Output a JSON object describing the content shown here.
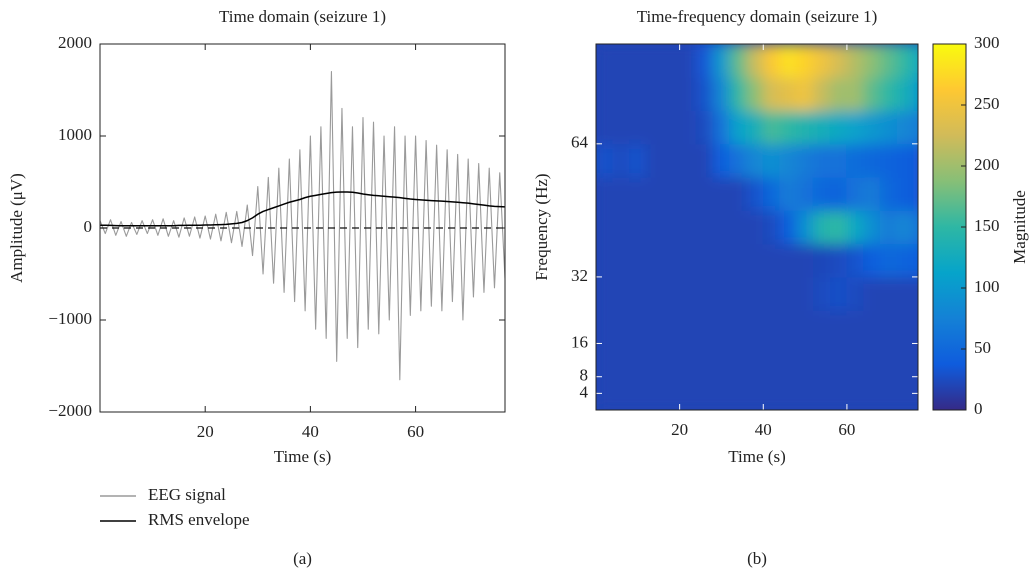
{
  "chart_data": [
    {
      "type": "line",
      "title": "Time domain (seizure 1)",
      "x_label": "Time (s)",
      "y_label": "Amplitude (μV)",
      "x": [
        0,
        1,
        2,
        3,
        4,
        5,
        6,
        7,
        8,
        9,
        10,
        11,
        12,
        13,
        14,
        15,
        16,
        17,
        18,
        19,
        20,
        21,
        22,
        23,
        24,
        25,
        26,
        27,
        28,
        29,
        30,
        31,
        32,
        33,
        34,
        35,
        36,
        37,
        38,
        39,
        40,
        41,
        42,
        43,
        44,
        45,
        46,
        47,
        48,
        49,
        50,
        51,
        52,
        53,
        54,
        55,
        56,
        57,
        58,
        59,
        60,
        61,
        62,
        63,
        64,
        65,
        66,
        67,
        68,
        69,
        70,
        71,
        72,
        73,
        74,
        75,
        76,
        77
      ],
      "series": [
        {
          "name": "EEG signal",
          "color": "#9a9a9a",
          "values": [
            80,
            -60,
            90,
            -80,
            70,
            -90,
            60,
            -70,
            80,
            -60,
            90,
            -80,
            100,
            -90,
            80,
            -100,
            110,
            -90,
            120,
            -110,
            130,
            -120,
            150,
            -140,
            170,
            -160,
            180,
            -200,
            250,
            -300,
            450,
            -500,
            550,
            -600,
            650,
            -700,
            750,
            -800,
            850,
            -900,
            1000,
            -1100,
            1100,
            -1200,
            1700,
            -1450,
            1300,
            -1200,
            1100,
            -1300,
            1200,
            -1100,
            1150,
            -1150,
            1000,
            -1000,
            1100,
            -1650,
            1000,
            -950,
            1000,
            -900,
            950,
            -850,
            900,
            -900,
            850,
            -800,
            800,
            -1000,
            750,
            -750,
            700,
            -700,
            650,
            -650,
            600,
            -550
          ]
        },
        {
          "name": "RMS envelope",
          "color": "#000000",
          "values": [
            30,
            30,
            28,
            26,
            25,
            25,
            25,
            25,
            25,
            25,
            25,
            25,
            25,
            25,
            25,
            28,
            28,
            30,
            30,
            30,
            32,
            33,
            35,
            37,
            40,
            45,
            50,
            60,
            80,
            110,
            150,
            180,
            200,
            220,
            240,
            260,
            280,
            295,
            310,
            330,
            345,
            355,
            365,
            375,
            385,
            390,
            392,
            392,
            388,
            380,
            370,
            362,
            355,
            350,
            345,
            340,
            335,
            330,
            322,
            315,
            310,
            306,
            302,
            298,
            295,
            292,
            288,
            284,
            280,
            275,
            270,
            262,
            255,
            248,
            240,
            235,
            232,
            230
          ]
        }
      ],
      "hline": 0,
      "xlim": [
        0,
        77
      ],
      "xticks": [
        20,
        40,
        60
      ],
      "ylim": [
        -2000,
        2000
      ],
      "yticks": [
        {
          "value": -2000,
          "label": "−2000"
        },
        {
          "value": -1000,
          "label": "−1000"
        },
        0,
        1000,
        2000
      ],
      "legend": "below",
      "caption": "(a)"
    },
    {
      "type": "heatmap",
      "title": "Time-frequency domain (seizure 1)",
      "x_label": "Time (s)",
      "y_label": "Frequency (Hz)",
      "x": [
        2,
        6,
        10,
        14,
        18,
        22,
        26,
        30,
        34,
        38,
        42,
        46,
        50,
        54,
        58,
        62,
        66,
        70,
        74,
        78
      ],
      "y": [
        4,
        12,
        20,
        28,
        36,
        44,
        52,
        60,
        68,
        76,
        84
      ],
      "z": [
        [
          20,
          20,
          20,
          20,
          20,
          20,
          20,
          20,
          20,
          20,
          20,
          20,
          20,
          20,
          20,
          20,
          20,
          20,
          20,
          20
        ],
        [
          20,
          20,
          20,
          20,
          20,
          20,
          20,
          20,
          20,
          20,
          20,
          20,
          20,
          20,
          20,
          20,
          20,
          20,
          20,
          20
        ],
        [
          20,
          20,
          20,
          20,
          20,
          20,
          20,
          20,
          20,
          20,
          20,
          20,
          20,
          20,
          20,
          20,
          20,
          20,
          20,
          20
        ],
        [
          20,
          20,
          20,
          20,
          20,
          20,
          20,
          20,
          20,
          20,
          20,
          20,
          20,
          25,
          28,
          25,
          20,
          20,
          20,
          20
        ],
        [
          20,
          20,
          20,
          20,
          20,
          20,
          20,
          20,
          20,
          20,
          20,
          20,
          20,
          22,
          25,
          30,
          40,
          50,
          45,
          40
        ],
        [
          20,
          20,
          20,
          20,
          20,
          20,
          20,
          20,
          20,
          20,
          25,
          40,
          90,
          140,
          150,
          120,
          90,
          70,
          80,
          60
        ],
        [
          20,
          20,
          20,
          20,
          20,
          20,
          20,
          20,
          20,
          30,
          50,
          70,
          60,
          50,
          45,
          60,
          70,
          50,
          40,
          35
        ],
        [
          30,
          25,
          30,
          20,
          20,
          20,
          20,
          40,
          60,
          80,
          90,
          80,
          70,
          60,
          60,
          55,
          50,
          45,
          40,
          35
        ],
        [
          20,
          20,
          20,
          20,
          20,
          20,
          25,
          60,
          110,
          130,
          160,
          150,
          140,
          130,
          120,
          110,
          100,
          90,
          80,
          70
        ],
        [
          20,
          20,
          20,
          20,
          20,
          20,
          30,
          80,
          150,
          190,
          230,
          240,
          250,
          220,
          200,
          200,
          170,
          150,
          130,
          100
        ],
        [
          20,
          20,
          20,
          20,
          20,
          20,
          35,
          100,
          170,
          220,
          260,
          280,
          270,
          250,
          230,
          210,
          190,
          170,
          150,
          120
        ]
      ],
      "xlim": [
        0,
        77
      ],
      "xticks": [
        20,
        40,
        60
      ],
      "ylim": [
        0,
        88
      ],
      "yticks": [
        4,
        8,
        16,
        32,
        64
      ],
      "zlim": [
        0,
        300
      ],
      "zticks": [
        0,
        50,
        100,
        150,
        200,
        250,
        300
      ],
      "colorbar_label": "Magnitude",
      "colormap": [
        "#352a87",
        "#0f5cdd",
        "#1481d6",
        "#06a4ca",
        "#2eb7a4",
        "#87bf77",
        "#d1bb59",
        "#fec832",
        "#f9fb0e"
      ],
      "caption": "(b)"
    }
  ]
}
